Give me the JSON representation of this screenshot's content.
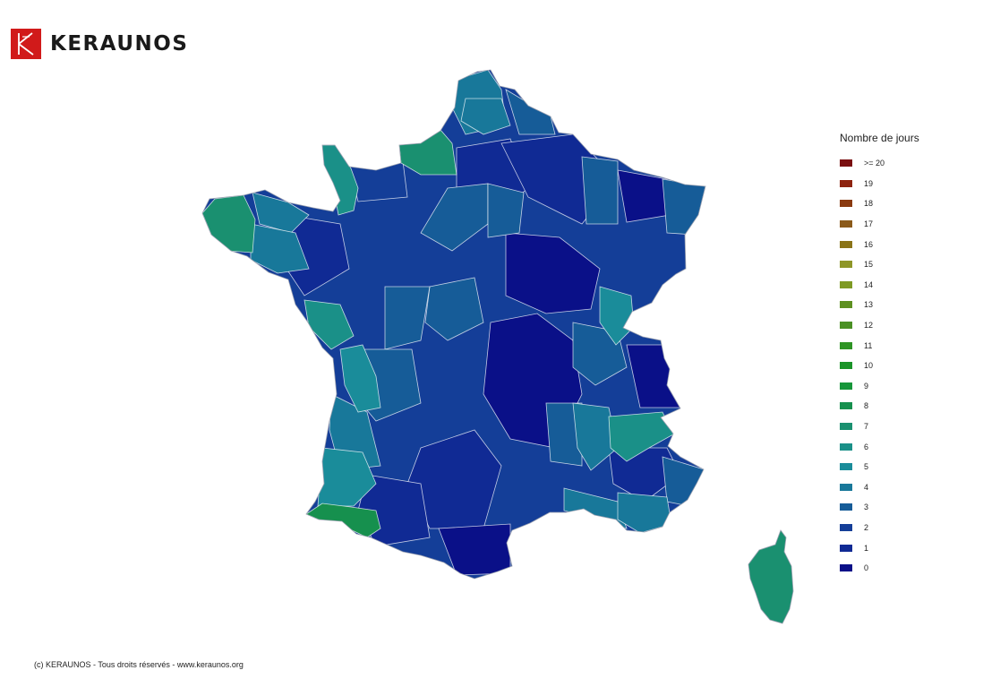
{
  "brand": {
    "name": "KERAUNOS",
    "logo_icon": "keraunos-logo-icon",
    "logo_color": "#d11a1a"
  },
  "legend": {
    "title": "Nombre de jours",
    "items": [
      {
        "label": ">= 20",
        "color": "#7a0f10"
      },
      {
        "label": "19",
        "color": "#8e2410"
      },
      {
        "label": "18",
        "color": "#8a3a10"
      },
      {
        "label": "17",
        "color": "#8b5a1a"
      },
      {
        "label": "16",
        "color": "#8a7418"
      },
      {
        "label": "15",
        "color": "#8e9628"
      },
      {
        "label": "14",
        "color": "#7e9a24"
      },
      {
        "label": "13",
        "color": "#5e9020"
      },
      {
        "label": "12",
        "color": "#4a9024"
      },
      {
        "label": "11",
        "color": "#2e9424"
      },
      {
        "label": "10",
        "color": "#1a9428"
      },
      {
        "label": "9",
        "color": "#16963a"
      },
      {
        "label": "8",
        "color": "#16904e"
      },
      {
        "label": "7",
        "color": "#1a9070"
      },
      {
        "label": "6",
        "color": "#1a9088"
      },
      {
        "label": "5",
        "color": "#1a8c9a"
      },
      {
        "label": "4",
        "color": "#18789a"
      },
      {
        "label": "3",
        "color": "#165c98"
      },
      {
        "label": "2",
        "color": "#143e98"
      },
      {
        "label": "1",
        "color": "#102a94"
      },
      {
        "label": "0",
        "color": "#0a1088"
      }
    ]
  },
  "footer": {
    "copyright": "(c) KERAUNOS - Tous droits réservés - www.keraunos.org"
  }
}
